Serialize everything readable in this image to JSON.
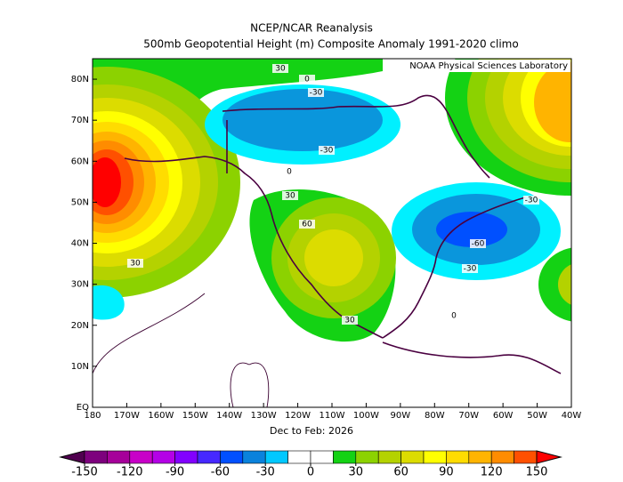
{
  "map": {
    "title": "NCEP/NCAR Reanalysis",
    "subtitle": "500mb Geopotential Height (m) Composite Anomaly 1991-2020 climo",
    "credit": "NOAA Physical Sciences Laboratory",
    "period": "Dec to Feb: 2026",
    "xlim": [
      -180,
      -40
    ],
    "ylim": [
      0,
      85
    ],
    "xticks": [
      {
        "value": -180,
        "label": "180"
      },
      {
        "value": -170,
        "label": "170W"
      },
      {
        "value": -160,
        "label": "160W"
      },
      {
        "value": -150,
        "label": "150W"
      },
      {
        "value": -140,
        "label": "140W"
      },
      {
        "value": -130,
        "label": "130W"
      },
      {
        "value": -120,
        "label": "120W"
      },
      {
        "value": -110,
        "label": "110W"
      },
      {
        "value": -100,
        "label": "100W"
      },
      {
        "value": -90,
        "label": "90W"
      },
      {
        "value": -80,
        "label": "80W"
      },
      {
        "value": -70,
        "label": "70W"
      },
      {
        "value": -60,
        "label": "60W"
      },
      {
        "value": -50,
        "label": "50W"
      },
      {
        "value": -40,
        "label": "40W"
      }
    ],
    "yticks": [
      {
        "value": 0,
        "label": "EQ"
      },
      {
        "value": 10,
        "label": "10N"
      },
      {
        "value": 20,
        "label": "20N"
      },
      {
        "value": 30,
        "label": "30N"
      },
      {
        "value": 40,
        "label": "40N"
      },
      {
        "value": 50,
        "label": "50N"
      },
      {
        "value": 60,
        "label": "60N"
      },
      {
        "value": 70,
        "label": "70N"
      },
      {
        "value": 80,
        "label": "80N"
      }
    ],
    "contour_labels": [
      30,
      0,
      -30,
      -30,
      0,
      30,
      60,
      -30,
      -60,
      -30,
      30,
      30,
      0
    ],
    "colorbar": {
      "colors": [
        "#50004f",
        "#7d007d",
        "#a6009a",
        "#c800c8",
        "#b400e6",
        "#8200ff",
        "#4628ff",
        "#0050ff",
        "#0a82dc",
        "#00c8ff",
        "#ffffff",
        "#ffffff",
        "#14d214",
        "#8cd200",
        "#b4d200",
        "#dcdc00",
        "#ffff00",
        "#ffdc00",
        "#ffb400",
        "#ff8c00",
        "#ff5000",
        "#ff0000"
      ],
      "ticks": [
        -150,
        -120,
        -90,
        -60,
        -30,
        0,
        30,
        60,
        90,
        120,
        150
      ]
    }
  }
}
